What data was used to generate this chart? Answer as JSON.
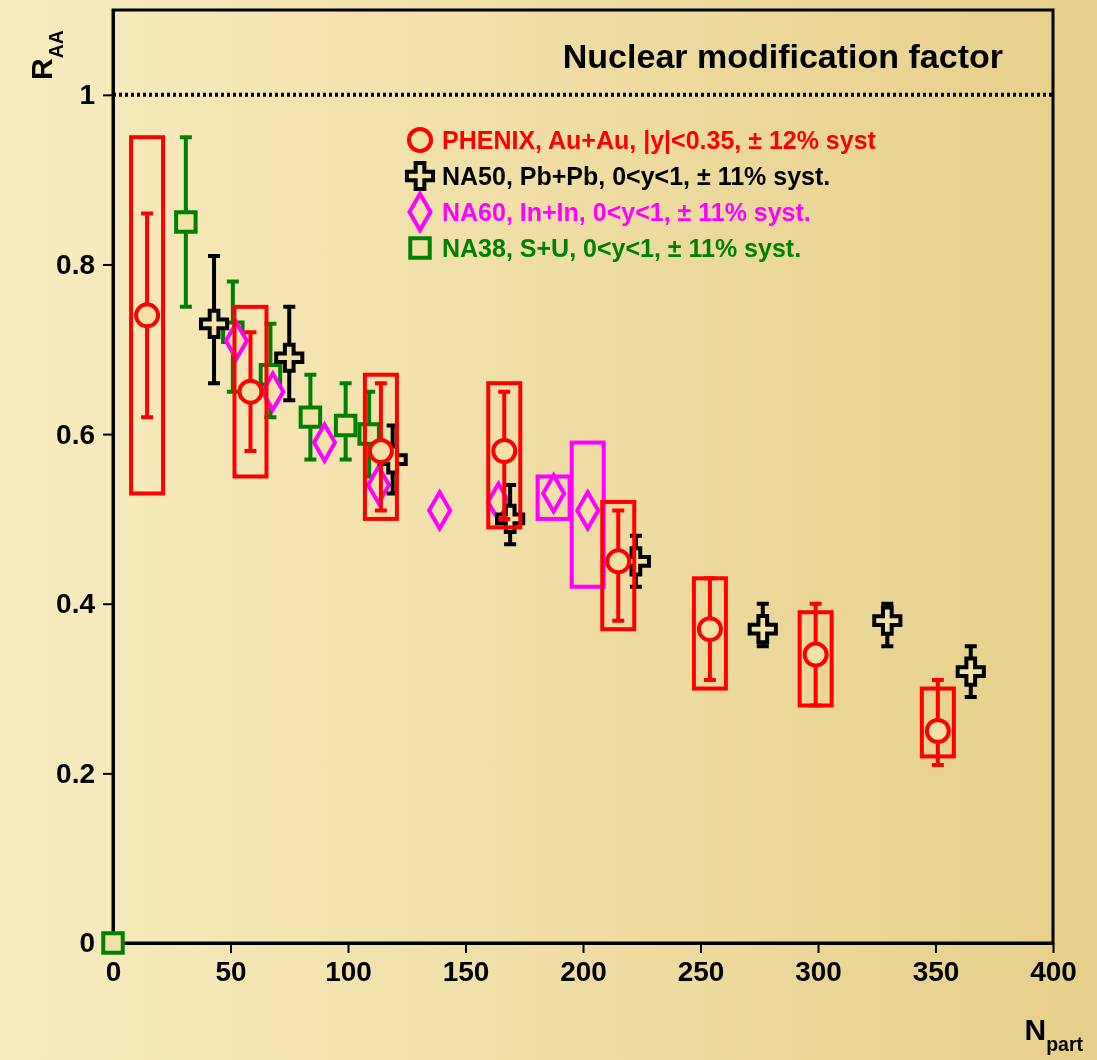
{
  "chart_data": {
    "type": "scatter",
    "title": "Nuclear modification factor",
    "xlabel": "N$_{part}$",
    "ylabel": "R$_{AA}$",
    "xlim": [
      0,
      400
    ],
    "xticks": [
      0,
      50,
      100,
      150,
      200,
      250,
      300,
      350,
      400
    ],
    "ylim": [
      0,
      1.1
    ],
    "yticks": [
      0,
      0.2,
      0.4,
      0.6,
      0.8,
      1
    ],
    "grid": false,
    "legend": "top right",
    "ref_lines": [
      {
        "axis": "y",
        "value": 1,
        "line_style": "dotted",
        "color": "#000000"
      }
    ],
    "series": [
      {
        "type": "bar",
        "color": "#ff0000",
        "x": [
          14.5,
          58.5,
          114,
          166.5,
          215,
          254,
          299,
          351
        ],
        "base": [
          0.53,
          0.55,
          0.5,
          0.49,
          0.37,
          0.3,
          0.28,
          0.22
        ],
        "values": [
          0.42,
          0.2,
          0.17,
          0.17,
          0.15,
          0.13,
          0.11,
          0.08
        ]
      },
      {
        "type": "bar",
        "color": "#ff00ff",
        "x": [
          187.5,
          202
        ],
        "base": [
          0.5,
          0.42
        ],
        "values": [
          0.05,
          0.17
        ]
      },
      {
        "name": "PHENIX, Au+Au, |y|<0.35, ± 12% syst",
        "color": "#ff0000",
        "marker": "circle",
        "x": [
          14.5,
          58.5,
          114,
          166.5,
          215,
          254,
          299,
          351
        ],
        "values": [
          0.74,
          0.65,
          0.58,
          0.58,
          0.45,
          0.37,
          0.34,
          0.25
        ],
        "errors": [
          [
            0.62,
            0.86
          ],
          [
            0.58,
            0.72
          ],
          [
            0.51,
            0.66
          ],
          [
            0.5,
            0.65
          ],
          [
            0.38,
            0.51
          ],
          [
            0.31,
            0.43
          ],
          [
            0.28,
            0.4
          ],
          [
            0.21,
            0.31
          ]
        ]
      },
      {
        "name": "NA50, Pb+Pb, 0<y<1, ± 11% syst.",
        "color": "#000000",
        "marker": "cross",
        "x": [
          43,
          75,
          119,
          169,
          222.5,
          276.5,
          329.5,
          365
        ],
        "values": [
          0.73,
          0.69,
          0.57,
          0.5,
          0.45,
          0.37,
          0.38,
          0.32
        ],
        "errors": [
          [
            0.66,
            0.81
          ],
          [
            0.64,
            0.75
          ],
          [
            0.53,
            0.61
          ],
          [
            0.47,
            0.54
          ],
          [
            0.42,
            0.48
          ],
          [
            0.35,
            0.4
          ],
          [
            0.35,
            0.4
          ],
          [
            0.29,
            0.35
          ]
        ]
      },
      {
        "name": "NA60, In+In, 0<y<1, ± 11% syst.",
        "color": "#ff00ff",
        "marker": "diamond",
        "x": [
          52.5,
          68,
          90,
          113,
          139,
          164,
          187.5,
          202
        ],
        "values": [
          0.71,
          0.65,
          0.59,
          0.54,
          0.51,
          0.52,
          0.53,
          0.51
        ]
      },
      {
        "name": "NA38, S+U, 0<y<1, ± 11% syst.",
        "color": "#008000",
        "marker": "square",
        "x": [
          0,
          31,
          51,
          67,
          84,
          99,
          109
        ],
        "values": [
          0,
          0.85,
          0.72,
          0.67,
          0.62,
          0.61,
          0.6
        ],
        "errors": [
          null,
          [
            0.75,
            0.95
          ],
          [
            0.65,
            0.78
          ],
          [
            0.62,
            0.73
          ],
          [
            0.57,
            0.67
          ],
          [
            0.57,
            0.66
          ],
          [
            0.55,
            0.65
          ]
        ]
      }
    ]
  }
}
